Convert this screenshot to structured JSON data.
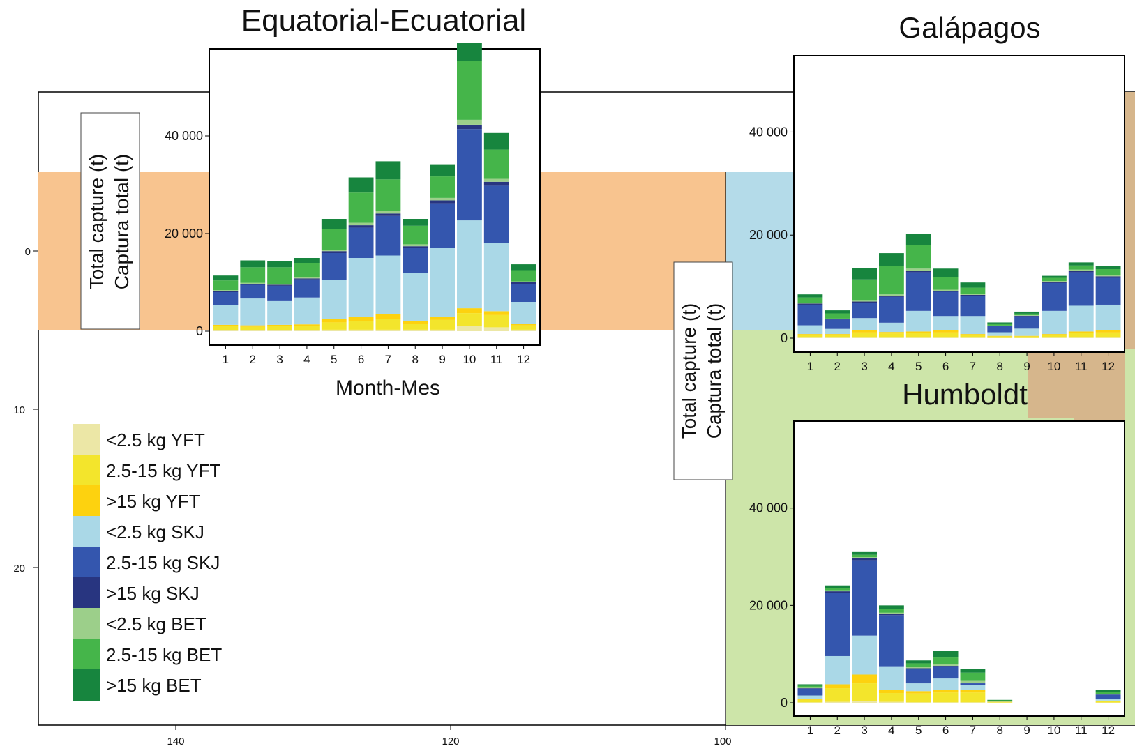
{
  "map": {
    "lat_ticks": [
      "0",
      "10",
      "20"
    ],
    "lon_ticks": [
      "140",
      "120",
      "100"
    ]
  },
  "legend": {
    "items": [
      {
        "label": "<2.5 kg YFT",
        "color": "#ece7a6"
      },
      {
        "label": "2.5-15 kg YFT",
        "color": "#f3e52c"
      },
      {
        "label": ">15 kg YFT",
        "color": "#fdd20f"
      },
      {
        "label": "<2.5 kg SKJ",
        "color": "#aad8e7"
      },
      {
        "label": "2.5-15 kg SKJ",
        "color": "#3456ae"
      },
      {
        "label": ">15 kg SKJ",
        "color": "#283580"
      },
      {
        "label": "<2.5 kg BET",
        "color": "#9ccf8a"
      },
      {
        "label": "2.5-15 kg BET",
        "color": "#45b54a"
      },
      {
        "label": ">15 kg BET",
        "color": "#17853e"
      }
    ]
  },
  "y_axis_label": {
    "line1": "Total  capture (t)",
    "line2": "Captura total (t)"
  },
  "x_axis_label": "Month-Mes",
  "chart_data": [
    {
      "type": "bar",
      "title": "Equatorial-Ecuatorial",
      "stacked": true,
      "categories": [
        "1",
        "2",
        "3",
        "4",
        "5",
        "6",
        "7",
        "8",
        "9",
        "10",
        "11",
        "12"
      ],
      "y_ticks": [
        0,
        20000,
        40000
      ],
      "y_tick_labels": [
        "0",
        "20 000",
        "40 000"
      ],
      "ylim": [
        0,
        57000
      ],
      "series": [
        {
          "name": "<2.5 kg YFT",
          "values": [
            200,
            200,
            200,
            200,
            300,
            300,
            300,
            300,
            300,
            1000,
            800,
            300
          ]
        },
        {
          "name": "2.5-15 kg YFT",
          "values": [
            800,
            700,
            800,
            900,
            1500,
            1800,
            2200,
            1200,
            2000,
            2700,
            2500,
            900
          ]
        },
        {
          "name": ">15 kg YFT",
          "values": [
            300,
            300,
            300,
            300,
            700,
            900,
            1000,
            500,
            700,
            1000,
            800,
            300
          ]
        },
        {
          "name": "<2.5 kg SKJ",
          "values": [
            4000,
            5500,
            5000,
            5500,
            8000,
            12000,
            12000,
            10000,
            14000,
            18000,
            14000,
            4500
          ]
        },
        {
          "name": "2.5-15 kg SKJ",
          "values": [
            2700,
            2800,
            3000,
            3700,
            5500,
            6200,
            8100,
            5000,
            9200,
            18700,
            11700,
            3700
          ]
        },
        {
          "name": ">15 kg SKJ",
          "values": [
            200,
            200,
            200,
            200,
            400,
            500,
            500,
            400,
            600,
            900,
            800,
            300
          ]
        },
        {
          "name": "<2.5 kg BET",
          "values": [
            200,
            200,
            200,
            200,
            300,
            500,
            500,
            400,
            500,
            1000,
            600,
            200
          ]
        },
        {
          "name": "2.5-15 kg BET",
          "values": [
            2000,
            3200,
            3400,
            3000,
            4200,
            6200,
            6500,
            3800,
            4400,
            12000,
            6000,
            2300
          ]
        },
        {
          "name": ">15 kg BET",
          "values": [
            1000,
            1400,
            1300,
            1000,
            2100,
            3100,
            3700,
            1400,
            2500,
            3700,
            3400,
            1200
          ]
        }
      ]
    },
    {
      "type": "bar",
      "title": "Galápagos",
      "stacked": true,
      "categories": [
        "1",
        "2",
        "3",
        "4",
        "5",
        "6",
        "7",
        "8",
        "9",
        "10",
        "11",
        "12"
      ],
      "y_ticks": [
        0,
        20000,
        40000
      ],
      "y_tick_labels": [
        "0",
        "20 000",
        "40 000"
      ],
      "ylim": [
        0,
        54000
      ],
      "series": [
        {
          "name": "<2.5 kg YFT",
          "values": [
            100,
            100,
            100,
            100,
            100,
            100,
            100,
            50,
            50,
            100,
            100,
            100
          ]
        },
        {
          "name": "2.5-15 kg YFT",
          "values": [
            500,
            500,
            1000,
            800,
            900,
            1000,
            500,
            300,
            300,
            500,
            900,
            1000
          ]
        },
        {
          "name": ">15 kg YFT",
          "values": [
            200,
            200,
            500,
            300,
            300,
            400,
            200,
            100,
            100,
            200,
            300,
            400
          ]
        },
        {
          "name": "<2.5 kg SKJ",
          "values": [
            1700,
            1000,
            2300,
            1800,
            4000,
            2800,
            3500,
            700,
            1400,
            4500,
            5000,
            5000
          ]
        },
        {
          "name": "2.5-15 kg SKJ",
          "values": [
            4000,
            1800,
            3000,
            5000,
            7500,
            4700,
            3900,
            1200,
            2400,
            5400,
            6500,
            5200
          ]
        },
        {
          "name": ">15 kg SKJ",
          "values": [
            200,
            100,
            200,
            200,
            300,
            200,
            200,
            50,
            100,
            200,
            300,
            300
          ]
        },
        {
          "name": "<2.5 kg BET",
          "values": [
            200,
            100,
            300,
            300,
            400,
            200,
            200,
            50,
            100,
            200,
            200,
            200
          ]
        },
        {
          "name": "2.5-15 kg BET",
          "values": [
            1000,
            1000,
            4000,
            5500,
            4500,
            2500,
            1200,
            400,
            300,
            600,
            800,
            1200
          ]
        },
        {
          "name": ">15 kg BET",
          "values": [
            600,
            600,
            2200,
            2500,
            2200,
            1600,
            1000,
            200,
            400,
            400,
            600,
            600
          ]
        }
      ]
    },
    {
      "type": "bar",
      "title": "Humboldt",
      "stacked": true,
      "categories": [
        "1",
        "2",
        "3",
        "4",
        "5",
        "6",
        "7",
        "8",
        "9",
        "10",
        "11",
        "12"
      ],
      "y_ticks": [
        0,
        20000,
        40000
      ],
      "y_tick_labels": [
        "0",
        "20 000",
        "40 000"
      ],
      "ylim": [
        0,
        57000
      ],
      "series": [
        {
          "name": "<2.5 kg YFT",
          "values": [
            100,
            200,
            300,
            200,
            100,
            100,
            100,
            50,
            0,
            0,
            0,
            50
          ]
        },
        {
          "name": "2.5-15 kg YFT",
          "values": [
            500,
            2800,
            3700,
            1800,
            1800,
            2000,
            2000,
            100,
            0,
            0,
            0,
            300
          ]
        },
        {
          "name": ">15 kg YFT",
          "values": [
            200,
            800,
            1800,
            600,
            500,
            600,
            600,
            50,
            0,
            0,
            0,
            100
          ]
        },
        {
          "name": "<2.5 kg SKJ",
          "values": [
            700,
            5800,
            8000,
            4900,
            1600,
            2300,
            900,
            0,
            0,
            0,
            0,
            400
          ]
        },
        {
          "name": "2.5-15 kg SKJ",
          "values": [
            1400,
            13000,
            15500,
            10500,
            3000,
            2500,
            400,
            0,
            0,
            0,
            0,
            800
          ]
        },
        {
          "name": ">15 kg SKJ",
          "values": [
            100,
            300,
            400,
            300,
            100,
            100,
            100,
            0,
            0,
            0,
            0,
            50
          ]
        },
        {
          "name": "<2.5 kg BET",
          "values": [
            100,
            200,
            200,
            200,
            200,
            300,
            400,
            100,
            0,
            0,
            0,
            100
          ]
        },
        {
          "name": "2.5-15 kg BET",
          "values": [
            400,
            500,
            500,
            800,
            800,
            1400,
            1700,
            200,
            0,
            0,
            0,
            400
          ]
        },
        {
          "name": ">15 kg BET",
          "values": [
            300,
            500,
            700,
            700,
            600,
            1300,
            800,
            100,
            0,
            0,
            0,
            400
          ]
        }
      ]
    }
  ]
}
